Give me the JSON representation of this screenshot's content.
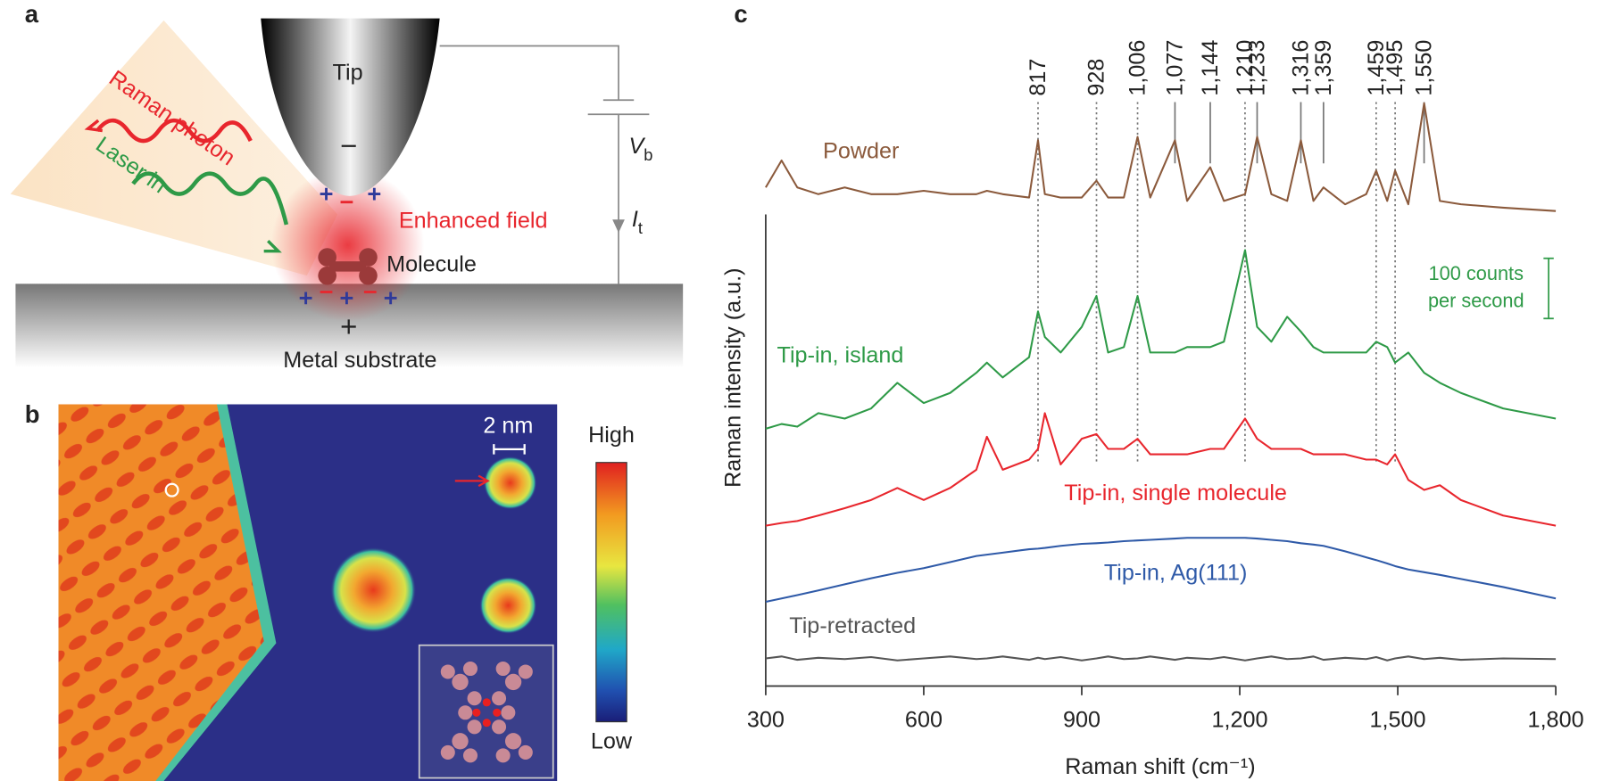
{
  "panels": {
    "a": {
      "label": "a",
      "tip": "Tip",
      "raman_photon": "Raman photon",
      "laser_in": "Laser in",
      "enhanced_field": "Enhanced field",
      "molecule": "Molecule",
      "substrate": "Metal substrate",
      "bias": {
        "symbol": "V",
        "subscript": "b"
      },
      "current": {
        "symbol": "I",
        "subscript": "t"
      }
    },
    "b": {
      "label": "b",
      "scale_bar": "2 nm",
      "colorbar_high": "High",
      "colorbar_low": "Low"
    },
    "c": {
      "label": "c",
      "scale_bar_lines": [
        "100 counts",
        "per second"
      ]
    }
  },
  "chart_data": {
    "type": "line",
    "x_label": "Raman shift (cm⁻¹)",
    "y_label": "Raman intensity (a.u.)",
    "xlim": [
      300,
      1800
    ],
    "ylim": [
      0,
      100
    ],
    "xticks": [
      300,
      600,
      900,
      {
        "value": 1200,
        "label": "1,200"
      },
      {
        "value": 1500,
        "label": "1,500"
      },
      {
        "value": 1800,
        "label": "1,800"
      }
    ],
    "peaks": [
      {
        "value": 817,
        "label": "817"
      },
      {
        "value": 928,
        "label": "928"
      },
      {
        "value": 1006,
        "label": "1,006"
      },
      {
        "value": 1077,
        "label": "1,077"
      },
      {
        "value": 1144,
        "label": "1,144"
      },
      {
        "value": 1210,
        "label": "1,210"
      },
      {
        "value": 1233,
        "label": "1,233"
      },
      {
        "value": 1316,
        "label": "1,316"
      },
      {
        "value": 1359,
        "label": "1,359"
      },
      {
        "value": 1459,
        "label": "1,459"
      },
      {
        "value": 1495,
        "label": "1,495"
      },
      {
        "value": 1550,
        "label": "1,550"
      }
    ],
    "x": [
      300,
      330,
      360,
      400,
      450,
      500,
      550,
      600,
      650,
      700,
      720,
      750,
      800,
      817,
      830,
      860,
      900,
      928,
      950,
      980,
      1006,
      1030,
      1077,
      1100,
      1144,
      1170,
      1210,
      1233,
      1260,
      1290,
      1316,
      1340,
      1359,
      1400,
      1440,
      1459,
      1480,
      1495,
      1520,
      1550,
      1580,
      1620,
      1700,
      1800
    ],
    "series": [
      {
        "name": "Powder",
        "color": "#8b5a3c",
        "values": [
          74,
          78,
          74,
          73,
          74,
          73,
          73,
          73.5,
          73,
          73,
          73.5,
          73,
          72.5,
          81,
          73,
          72.5,
          72.5,
          75,
          72.5,
          72.5,
          81.5,
          72.5,
          81,
          72,
          77,
          72,
          73,
          81.5,
          73,
          72,
          81,
          72,
          74,
          71.5,
          73,
          76.5,
          72,
          76.5,
          71.5,
          86.5,
          72,
          71.5,
          71,
          70.5
        ]
      },
      {
        "name": "Tip-in, island",
        "color": "#2e9a47",
        "values": [
          38.2,
          38.9,
          38.5,
          40.5,
          39.7,
          41.2,
          45,
          42,
          43.5,
          46.5,
          48,
          45.8,
          48.8,
          55.6,
          51.8,
          49.5,
          53.3,
          57.9,
          49.5,
          50.3,
          57.9,
          49.5,
          49.5,
          50.3,
          50.3,
          51.1,
          64.7,
          53.3,
          51.1,
          54.8,
          52.6,
          50.3,
          49.5,
          49.5,
          49.5,
          51.1,
          50.3,
          48,
          49.5,
          46.5,
          45,
          43.5,
          41.2,
          39.7
        ]
      },
      {
        "name": "Tip-in, single molecule",
        "color": "#e8262d",
        "values": [
          23.8,
          24.2,
          24.5,
          25.3,
          26.4,
          27.6,
          29.4,
          27.6,
          29.4,
          32.1,
          37,
          32.1,
          33.6,
          35.2,
          40.5,
          32.9,
          36.7,
          37.4,
          35.2,
          35.2,
          36.7,
          34.4,
          34.4,
          34.4,
          35.2,
          35.2,
          39.7,
          36.7,
          35.2,
          35.2,
          35.2,
          34.4,
          34.4,
          34.4,
          33.6,
          33.6,
          32.9,
          34.4,
          30.6,
          29.1,
          29.8,
          27.6,
          25.3,
          23.8
        ]
      },
      {
        "name": "Tip-in, Ag(111)",
        "color": "#2f5aa8",
        "values": [
          12.5,
          13,
          13.5,
          14.2,
          15.1,
          16,
          16.8,
          17.5,
          18.4,
          19.3,
          19.5,
          19.8,
          20.3,
          20.4,
          20.5,
          20.8,
          21.1,
          21.2,
          21.3,
          21.5,
          21.6,
          21.7,
          21.9,
          22,
          22,
          22,
          22,
          21.9,
          21.7,
          21.5,
          21.2,
          21,
          20.8,
          20,
          19.1,
          18.7,
          18.2,
          17.8,
          17.3,
          16.9,
          16.5,
          15.9,
          14.7,
          13
        ]
      },
      {
        "name": "Tip-retracted",
        "color": "#555555",
        "values": [
          4.1,
          4.4,
          3.9,
          4.2,
          4.0,
          4.3,
          3.8,
          4.1,
          4.4,
          4.0,
          4.1,
          4.4,
          3.9,
          4.2,
          4.0,
          4.3,
          3.8,
          4.1,
          4.4,
          4.0,
          4.1,
          4.4,
          3.9,
          4.2,
          4.0,
          4.3,
          3.8,
          4.1,
          4.4,
          4.0,
          4.1,
          4.4,
          3.9,
          4.2,
          4.0,
          4.3,
          3.8,
          4.1,
          4.4,
          4.0,
          4.2,
          3.9,
          4.1,
          4.0
        ]
      }
    ]
  }
}
